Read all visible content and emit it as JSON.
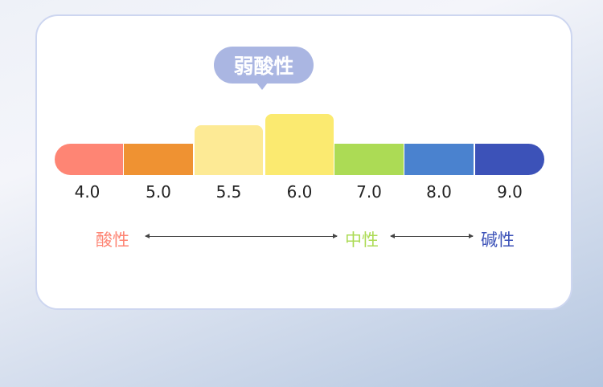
{
  "callout": {
    "label": "弱酸性",
    "color": "#aab6e2"
  },
  "scale": [
    {
      "ph": "4.0",
      "color": "#fe8574",
      "raised": 0
    },
    {
      "ph": "5.0",
      "color": "#ef9232",
      "raised": 0
    },
    {
      "ph": "5.5",
      "color": "#fdea95",
      "raised": 1
    },
    {
      "ph": "6.0",
      "color": "#fbea70",
      "raised": 2
    },
    {
      "ph": "7.0",
      "color": "#acdb55",
      "raised": 0
    },
    {
      "ph": "8.0",
      "color": "#4a82cf",
      "raised": 0
    },
    {
      "ph": "9.0",
      "color": "#3c52b8",
      "raised": 0
    }
  ],
  "categories": {
    "acid": {
      "label": "酸性",
      "color": "#fe8574"
    },
    "neutral": {
      "label": "中性",
      "color": "#acdb55"
    },
    "alkaline": {
      "label": "碱性",
      "color": "#3c52b8"
    }
  }
}
